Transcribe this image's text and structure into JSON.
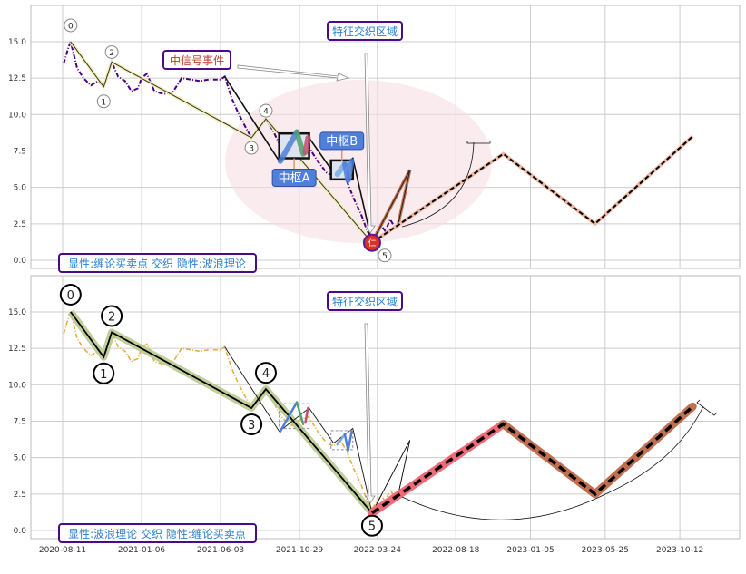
{
  "chart_data": {
    "type": "line",
    "x_ticks": [
      "2020-08-11",
      "2021-01-06",
      "2021-06-03",
      "2021-10-29",
      "2022-03-24",
      "2022-08-18",
      "2023-01-05",
      "2023-05-25",
      "2023-10-12"
    ],
    "y_ticks": [
      "0.0",
      "2.5",
      "5.0",
      "7.5",
      "10.0",
      "12.5",
      "15.0"
    ],
    "ylim": [
      -0.6,
      17.8
    ],
    "grid": true,
    "colors": {
      "price_top": "#4b0082",
      "price_bottom": "#e8a838",
      "wave_halo_top": "#f3f0b0",
      "wave_halo_bottom": "#b9c98f",
      "forecast_top": "#f0b8a0",
      "forecast_red": "#f06a78",
      "forecast_brown": "#c07050",
      "ellipse": "#f6dde3",
      "label_blue": "#2a7fd0",
      "label_border": "#4b0a8a",
      "signal_red": "#c0392b",
      "zhongshu_fill": "#4f7fd8"
    },
    "price": [
      [
        "2020-08-13",
        13.5
      ],
      [
        "2020-08-21",
        14.5
      ],
      [
        "2020-08-26",
        15.0
      ],
      [
        "2020-09-07",
        13.2
      ],
      [
        "2020-09-19",
        12.5
      ],
      [
        "2020-10-03",
        12.0
      ],
      [
        "2020-10-16",
        12.3
      ],
      [
        "2020-10-27",
        11.9
      ],
      [
        "2020-11-06",
        13.0
      ],
      [
        "2020-11-11",
        13.6
      ],
      [
        "2020-11-23",
        12.6
      ],
      [
        "2020-12-06",
        12.3
      ],
      [
        "2020-12-18",
        11.6
      ],
      [
        "2020-12-30",
        11.8
      ],
      [
        "2021-01-06",
        12.5
      ],
      [
        "2021-01-16",
        12.8
      ],
      [
        "2021-01-30",
        11.6
      ],
      [
        "2021-02-16",
        11.4
      ],
      [
        "2021-03-05",
        11.5
      ],
      [
        "2021-03-22",
        12.5
      ],
      [
        "2021-04-08",
        12.4
      ],
      [
        "2021-04-25",
        12.3
      ],
      [
        "2021-05-12",
        12.4
      ],
      [
        "2021-06-03",
        12.4
      ],
      [
        "2021-06-11",
        12.6
      ],
      [
        "2021-06-23",
        11.2
      ],
      [
        "2021-07-05",
        10.2
      ],
      [
        "2021-07-19",
        9.2
      ],
      [
        "2021-07-31",
        8.4
      ],
      [
        "2021-08-13",
        9.0
      ],
      [
        "2021-08-27",
        9.6
      ],
      [
        "2021-09-08",
        9.0
      ],
      [
        "2021-09-21",
        8.0
      ],
      [
        "2021-10-03",
        7.5
      ],
      [
        "2021-10-15",
        7.2
      ],
      [
        "2021-10-29",
        7.6
      ],
      [
        "2021-11-15",
        7.8
      ],
      [
        "2021-12-02",
        6.8
      ],
      [
        "2021-12-19",
        6.0
      ],
      [
        "2022-01-01",
        5.8
      ],
      [
        "2022-01-13",
        6.2
      ],
      [
        "2022-01-25",
        5.5
      ],
      [
        "2022-02-08",
        4.2
      ],
      [
        "2022-02-21",
        3.2
      ],
      [
        "2022-03-05",
        2.0
      ],
      [
        "2022-03-14",
        1.5
      ],
      [
        "2022-03-26",
        2.1
      ],
      [
        "2022-03-31",
        2.4
      ],
      [
        "2022-04-08",
        2.0
      ],
      [
        "2022-04-17",
        2.8
      ],
      [
        "2022-04-25",
        2.3
      ]
    ],
    "wave_points": [
      {
        "label": "0",
        "date": "2020-08-26",
        "value": 15.0
      },
      {
        "label": "1",
        "date": "2020-10-27",
        "value": 11.9
      },
      {
        "label": "2",
        "date": "2020-11-11",
        "value": 13.6
      },
      {
        "label": "3",
        "date": "2021-07-31",
        "value": 8.4
      },
      {
        "label": "4",
        "date": "2021-08-27",
        "value": 9.7
      },
      {
        "label": "5",
        "date": "2022-03-14",
        "value": 1.2
      }
    ],
    "bi_lines": [
      [
        "2021-06-11",
        12.6
      ],
      [
        "2021-09-21",
        6.8
      ],
      [
        "2021-11-16",
        8.4
      ],
      [
        "2022-01-01",
        6.0
      ],
      [
        "2022-02-06",
        7.0
      ],
      [
        "2022-03-14",
        1.2
      ]
    ],
    "post_zigzag": [
      [
        "2022-03-14",
        1.2
      ],
      [
        "2022-05-24",
        6.2
      ],
      [
        "2022-05-01",
        2.3
      ]
    ],
    "forecast": [
      [
        "2022-03-14",
        1.2
      ],
      [
        "2022-11-15",
        7.3
      ],
      [
        "2023-05-06",
        2.5
      ],
      [
        "2023-11-05",
        8.5
      ]
    ],
    "zhongshu": [
      {
        "name": "中枢A",
        "start": "2021-09-21",
        "end": "2021-11-16",
        "high": 8.7,
        "low": 7.0,
        "strokes": [
          [
            "2021-09-23",
            6.8,
            "2021-10-24",
            8.8,
            "#4f7fd8"
          ],
          [
            "2021-10-24",
            8.8,
            "2021-11-05",
            7.3,
            "#4f9f6f"
          ],
          [
            "2021-11-09",
            7.4,
            "2021-11-14",
            8.4,
            "#c05070"
          ]
        ]
      },
      {
        "name": "中枢B",
        "start": "2021-12-27",
        "end": "2022-02-06",
        "high": 6.85,
        "low": 5.55,
        "strokes": [
          [
            "2022-01-08",
            5.9,
            "2022-01-22",
            6.6,
            "#7aaee0"
          ],
          [
            "2022-01-22",
            6.6,
            "2022-01-28",
            5.5,
            "#4f7fd8"
          ],
          [
            "2022-01-28",
            5.5,
            "2022-02-04",
            6.8,
            "#4f7fd8"
          ]
        ]
      }
    ],
    "annotations": {
      "feature_zone": "特征交织区域",
      "signal_event": "中信号事件",
      "top_caption": "显性:缠论买卖点 交织 隐性:波浪理论",
      "bottom_caption": "显性:波浪理论 交织 隐性:缠论买卖点",
      "marker_text": "仁"
    }
  }
}
